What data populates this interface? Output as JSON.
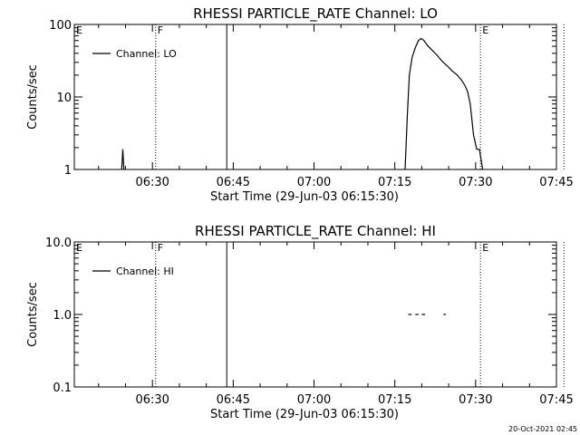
{
  "footer_timestamp": "20-Oct-2021 02:45",
  "chart_data": [
    {
      "type": "line",
      "title": "RHESSI PARTICLE_RATE Channel: LO",
      "xlabel": "Start Time (29-Jun-03 06:15:30)",
      "ylabel": "Counts/sec",
      "yscale": "log",
      "ylim": [
        1,
        100
      ],
      "xlim_minutes": [
        15.5,
        105
      ],
      "x_unit": "minutes after 06:00:00",
      "yticks": [
        {
          "value": 1,
          "label": "1"
        },
        {
          "value": 10,
          "label": "10"
        },
        {
          "value": 100,
          "label": "100"
        }
      ],
      "xticks": [
        {
          "value": 30,
          "label": "06:30"
        },
        {
          "value": 45,
          "label": "06:45"
        },
        {
          "value": 60,
          "label": "07:00"
        },
        {
          "value": 75,
          "label": "07:15"
        },
        {
          "value": 90,
          "label": "07:30"
        },
        {
          "value": 105,
          "label": "07:45"
        }
      ],
      "legend": {
        "label": "Channel: LO",
        "placement": "top-left"
      },
      "markers": [
        {
          "label": "E",
          "x": 15.5,
          "style": "dotted"
        },
        {
          "label": "F",
          "x": 30.6,
          "style": "dotted"
        },
        {
          "label": "",
          "x": 43.8,
          "style": "solid"
        },
        {
          "label": "E",
          "x": 90.9,
          "style": "dotted"
        },
        {
          "label": "",
          "x": 106.4,
          "style": "dotted"
        }
      ],
      "series": [
        {
          "name": "Channel: LO",
          "segments": [
            [
              [
                24.3,
                1
              ],
              [
                24.5,
                1.9
              ],
              [
                24.7,
                1
              ]
            ],
            [
              [
                76.9,
                1
              ],
              [
                77.3,
                5
              ],
              [
                77.7,
                20
              ],
              [
                78.2,
                35
              ],
              [
                78.8,
                48
              ],
              [
                79.4,
                60
              ],
              [
                79.9,
                64
              ],
              [
                80.4,
                60
              ],
              [
                81.0,
                52
              ],
              [
                81.8,
                45
              ],
              [
                82.8,
                38
              ],
              [
                83.8,
                31
              ],
              [
                84.7,
                27
              ],
              [
                85.6,
                23
              ],
              [
                86.6,
                20
              ],
              [
                87.4,
                17
              ],
              [
                88.0,
                14.5
              ],
              [
                88.5,
                12
              ],
              [
                89.0,
                8
              ],
              [
                89.6,
                3
              ],
              [
                90.2,
                1.9
              ],
              [
                90.7,
                1.9
              ],
              [
                91.3,
                1
              ]
            ]
          ]
        }
      ]
    },
    {
      "type": "line",
      "title": "RHESSI PARTICLE_RATE Channel: HI",
      "xlabel": "Start Time (29-Jun-03 06:15:30)",
      "ylabel": "Counts/sec",
      "yscale": "log",
      "ylim": [
        0.1,
        10
      ],
      "xlim_minutes": [
        15.5,
        105
      ],
      "x_unit": "minutes after 06:00:00",
      "yticks": [
        {
          "value": 0.1,
          "label": "0.1"
        },
        {
          "value": 1,
          "label": "1.0"
        },
        {
          "value": 10,
          "label": "10.0"
        }
      ],
      "xticks": [
        {
          "value": 30,
          "label": "06:30"
        },
        {
          "value": 45,
          "label": "06:45"
        },
        {
          "value": 60,
          "label": "07:00"
        },
        {
          "value": 75,
          "label": "07:15"
        },
        {
          "value": 90,
          "label": "07:30"
        },
        {
          "value": 105,
          "label": "07:45"
        }
      ],
      "legend": {
        "label": "Channel: HI",
        "placement": "top-left"
      },
      "markers": [
        {
          "label": "E",
          "x": 15.5,
          "style": "dotted"
        },
        {
          "label": "F",
          "x": 30.6,
          "style": "dotted"
        },
        {
          "label": "",
          "x": 43.8,
          "style": "solid"
        },
        {
          "label": "E",
          "x": 90.9,
          "style": "dotted"
        },
        {
          "label": "",
          "x": 106.4,
          "style": "dotted"
        }
      ],
      "series": [
        {
          "name": "Channel: HI",
          "segments": [
            [
              [
                77.5,
                1
              ],
              [
                78.1,
                1
              ]
            ],
            [
              [
                78.8,
                1
              ],
              [
                79.4,
                1
              ]
            ],
            [
              [
                80.0,
                1
              ],
              [
                80.6,
                1
              ]
            ],
            [
              [
                84.0,
                1
              ],
              [
                84.5,
                1
              ]
            ]
          ]
        }
      ]
    }
  ]
}
